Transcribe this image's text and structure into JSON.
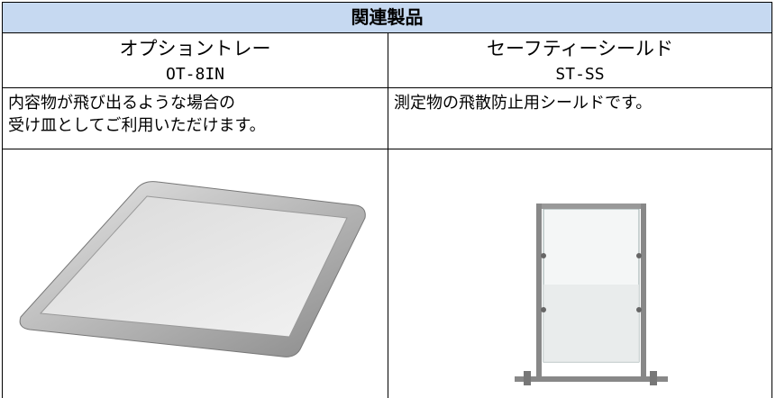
{
  "header": {
    "title": "関連製品"
  },
  "products": [
    {
      "name": "オプショントレー",
      "model": "OT-8IN",
      "description": [
        "内容物が飛び出るような場合の",
        "受け皿としてご利用いただけます。"
      ]
    },
    {
      "name": "セーフティーシールド",
      "model": "ST-SS",
      "description": [
        "測定物の飛散防止用シールドです。"
      ]
    }
  ]
}
